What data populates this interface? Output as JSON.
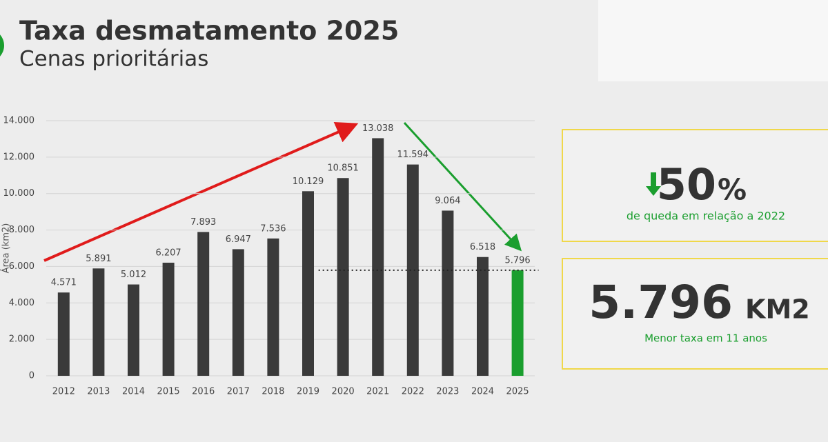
{
  "chart_data": {
    "type": "bar",
    "title": "Taxa desmatamento 2025",
    "subtitle": "Cenas prioritárias",
    "y_label": "Área (km2)",
    "categories": [
      "2012",
      "2013",
      "2014",
      "2015",
      "2016",
      "2017",
      "2018",
      "2019",
      "2020",
      "2021",
      "2022",
      "2023",
      "2024",
      "2025"
    ],
    "values": [
      4571,
      5891,
      5012,
      6207,
      7893,
      6947,
      7536,
      10129,
      10851,
      13038,
      11594,
      9064,
      6518,
      5796
    ],
    "value_labels": [
      "4.571",
      "5.891",
      "5.012",
      "6.207",
      "7.893",
      "6.947",
      "7.536",
      "10.129",
      "10.851",
      "13.038",
      "11.594",
      "9.064",
      "6.518",
      "5.796"
    ],
    "colors": [
      "#3a3a3a",
      "#3a3a3a",
      "#3a3a3a",
      "#3a3a3a",
      "#3a3a3a",
      "#3a3a3a",
      "#3a3a3a",
      "#3a3a3a",
      "#3a3a3a",
      "#3a3a3a",
      "#3a3a3a",
      "#3a3a3a",
      "#3a3a3a",
      "#1a9e2e"
    ],
    "ylim": [
      0,
      14000
    ],
    "yticks": [
      0,
      {
        "value": 2000,
        "label": "2.000"
      },
      {
        "value": 4000,
        "label": "4.000"
      },
      {
        "value": 6000,
        "label": "6.000"
      },
      {
        "value": 8000,
        "label": "8.000"
      },
      {
        "value": 10000,
        "label": "10.000"
      },
      {
        "value": 12000,
        "label": "12.000"
      },
      {
        "value": 14000,
        "label": "14.000"
      }
    ],
    "grid": true
  },
  "panels": [
    {
      "stat": "50",
      "unit": "%",
      "caption": "de queda em relação a 2022"
    },
    {
      "stat": "5.796",
      "unit": "KM2",
      "caption": "Menor taxa em 11 anos"
    }
  ]
}
